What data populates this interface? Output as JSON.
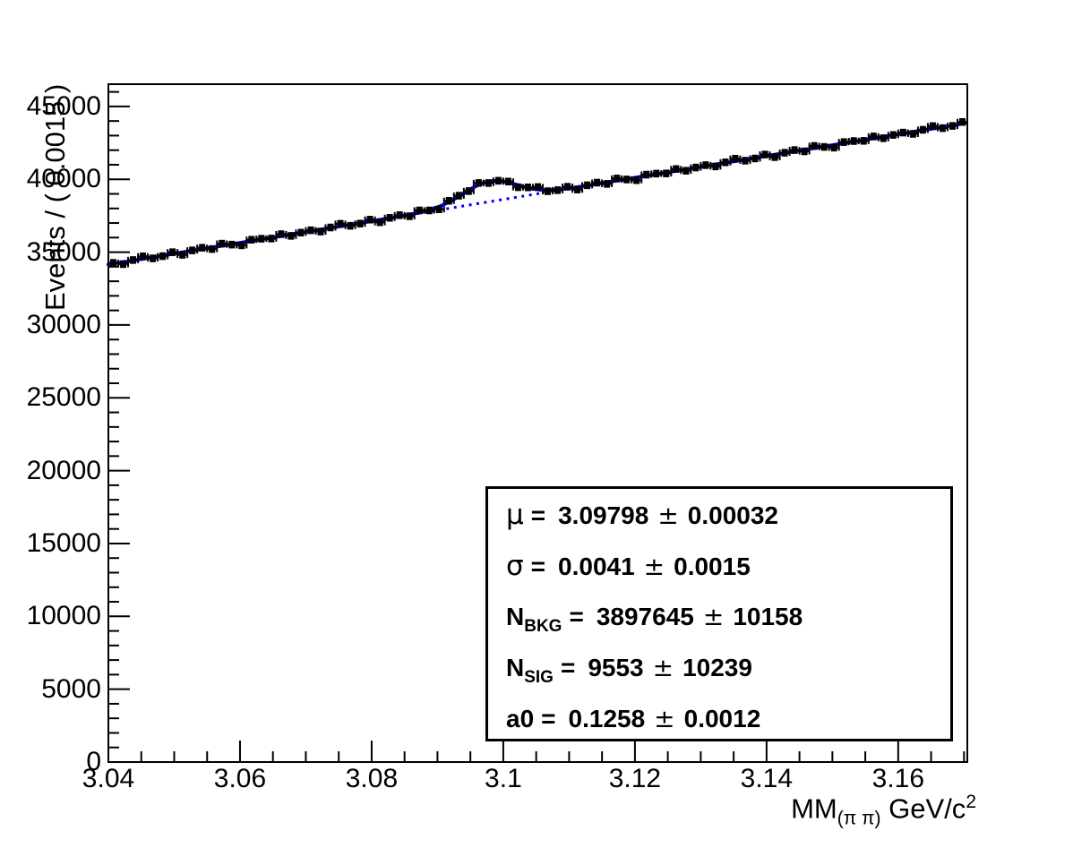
{
  "figure": {
    "background": "#ffffff",
    "frame_color": "#000000",
    "marker_color": "#000000",
    "fit_color": "#0000ff"
  },
  "chart_data": {
    "type": "scatter",
    "title": "",
    "ylabel": "Events / ( 0.0015 )",
    "xlabel": {
      "main": "MM",
      "sub": "(π π)",
      "unit": " GeV/c",
      "sup": "2"
    },
    "xlim": [
      3.04,
      3.1705
    ],
    "ylim": [
      0,
      46530
    ],
    "grid": false,
    "legend": "none",
    "x_major_ticks": [
      {
        "v": 3.04,
        "label": "3.04"
      },
      {
        "v": 3.06,
        "label": "3.06"
      },
      {
        "v": 3.08,
        "label": "3.08"
      },
      {
        "v": 3.1,
        "label": "3.1"
      },
      {
        "v": 3.12,
        "label": "3.12"
      },
      {
        "v": 3.14,
        "label": "3.14"
      },
      {
        "v": 3.16,
        "label": "3.16"
      }
    ],
    "x_minor_step": 0.005,
    "y_major_ticks": [
      {
        "v": 0,
        "label": "0"
      },
      {
        "v": 5000,
        "label": "5000"
      },
      {
        "v": 10000,
        "label": "10000"
      },
      {
        "v": 15000,
        "label": "15000"
      },
      {
        "v": 20000,
        "label": "20000"
      },
      {
        "v": 25000,
        "label": "25000"
      },
      {
        "v": 30000,
        "label": "30000"
      },
      {
        "v": 35000,
        "label": "35000"
      },
      {
        "v": 40000,
        "label": "40000"
      },
      {
        "v": 45000,
        "label": "45000"
      }
    ],
    "y_minor_step": 1000,
    "series": [
      {
        "name": "data-points",
        "type": "points",
        "marker": "filled-circle",
        "color": "#000000",
        "bin_width": 0.0015,
        "xerr": 0.00075,
        "yerr": 200,
        "x": [
          3.04075,
          3.04225,
          3.04375,
          3.04525,
          3.04675,
          3.04825,
          3.04975,
          3.05125,
          3.05275,
          3.05425,
          3.05575,
          3.05725,
          3.05875,
          3.06025,
          3.06175,
          3.06325,
          3.06475,
          3.06625,
          3.06775,
          3.06925,
          3.07075,
          3.07225,
          3.07375,
          3.07525,
          3.07675,
          3.07825,
          3.07975,
          3.08125,
          3.08275,
          3.08425,
          3.08575,
          3.08725,
          3.08875,
          3.09025,
          3.09175,
          3.09325,
          3.09475,
          3.09625,
          3.09775,
          3.09925,
          3.10075,
          3.10225,
          3.10375,
          3.10525,
          3.10675,
          3.10825,
          3.10975,
          3.11125,
          3.11275,
          3.11425,
          3.11575,
          3.11725,
          3.11875,
          3.12025,
          3.12175,
          3.12325,
          3.12475,
          3.12625,
          3.12775,
          3.12925,
          3.13075,
          3.13225,
          3.13375,
          3.13525,
          3.13675,
          3.13825,
          3.13975,
          3.14125,
          3.14275,
          3.14425,
          3.14575,
          3.14725,
          3.14875,
          3.15025,
          3.15175,
          3.15325,
          3.15475,
          3.15625,
          3.15775,
          3.15925,
          3.16075,
          3.16225,
          3.16375,
          3.16525,
          3.16675,
          3.16825,
          3.16975
        ],
        "y": [
          34266,
          34178,
          34459,
          34711,
          34573,
          34725,
          34996,
          34818,
          35120,
          35302,
          35213,
          35585,
          35517,
          35469,
          35850,
          35922,
          35934,
          36236,
          36117,
          36339,
          36501,
          36413,
          36694,
          36946,
          36808,
          36960,
          37231,
          37053,
          37355,
          37537,
          37464,
          37865,
          37863,
          37940,
          38525,
          38875,
          39192,
          39747,
          39744,
          39902,
          39845,
          39457,
          39446,
          39470,
          39184,
          39255,
          39489,
          39296,
          39593,
          39772,
          39683,
          40055,
          39987,
          39939,
          40320,
          40392,
          40404,
          40706,
          40587,
          40809,
          40971,
          40883,
          41164,
          41416,
          41278,
          41430,
          41701,
          41523,
          41825,
          42007,
          41918,
          42290,
          42222,
          42174,
          42555,
          42627,
          42639,
          42941,
          42822,
          43044,
          43206,
          43118,
          43399,
          43651,
          43513,
          43665,
          43936
        ]
      },
      {
        "name": "total-fit",
        "type": "curve",
        "color": "#0000ff",
        "line_style": "solid",
        "line_width": 4,
        "model": {
          "form": "linear+gaussian",
          "x0": 3.04,
          "intercept": 34150,
          "slope": 74500,
          "mu": 3.09798,
          "sigma": 0.0041,
          "amplitude": 1394
        }
      },
      {
        "name": "background-fit",
        "type": "curve",
        "color": "#0000ff",
        "line_style": "dotted",
        "line_width": 3,
        "model": {
          "form": "linear",
          "x0": 3.04,
          "intercept": 34150,
          "slope": 74500
        }
      }
    ]
  },
  "stats_box": {
    "eq": "=",
    "pm": "±",
    "params": [
      {
        "name": "μ",
        "sub": "",
        "greek": true,
        "value": "3.09798",
        "err": "0.00032"
      },
      {
        "name": "σ",
        "sub": "",
        "greek": true,
        "value": "0.0041",
        "err": "0.0015"
      },
      {
        "name": "N",
        "sub": "BKG",
        "greek": false,
        "value": "3897645",
        "err": "10158"
      },
      {
        "name": "N",
        "sub": "SIG",
        "greek": false,
        "value": "9553",
        "err": "10239"
      },
      {
        "name": "a0",
        "sub": "",
        "greek": false,
        "value": "0.1258",
        "err": "0.0012"
      }
    ]
  }
}
